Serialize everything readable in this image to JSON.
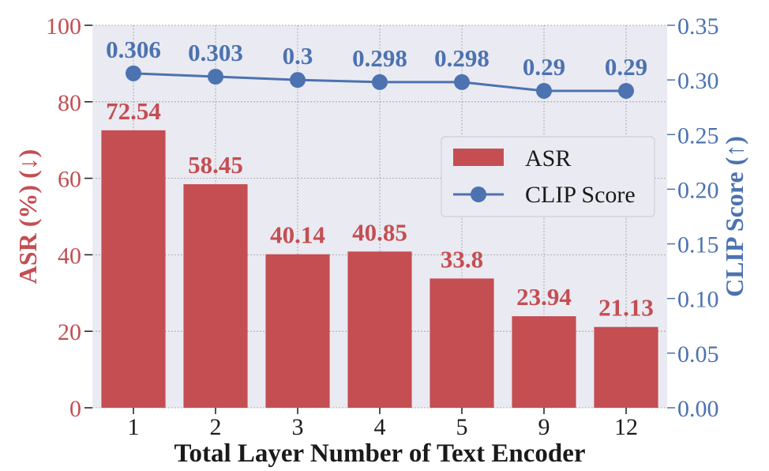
{
  "chart_data": {
    "type": "bar",
    "categories": [
      "1",
      "2",
      "3",
      "4",
      "5",
      "9",
      "12"
    ],
    "series": [
      {
        "name": "ASR",
        "type": "bar",
        "axis": "left",
        "values": [
          72.54,
          58.45,
          40.14,
          40.85,
          33.8,
          23.94,
          21.13
        ],
        "labels": [
          "72.54",
          "58.45",
          "40.14",
          "40.85",
          "33.8",
          "23.94",
          "21.13"
        ]
      },
      {
        "name": "CLIP Score",
        "type": "line",
        "axis": "right",
        "values": [
          0.306,
          0.303,
          0.3,
          0.298,
          0.298,
          0.29,
          0.29
        ],
        "labels": [
          "0.306",
          "0.303",
          "0.3",
          "0.298",
          "0.298",
          "0.29",
          "0.29"
        ]
      }
    ],
    "xlabel": "Total Layer Number of Text Encoder",
    "ylabel": "ASR (%) (↓)",
    "ylabel_right": "CLIP Score (↑)",
    "ylim": [
      0,
      100
    ],
    "ylim_right": [
      0,
      0.35
    ],
    "yticks": [
      "0",
      "20",
      "40",
      "60",
      "80",
      "100"
    ],
    "yticks_right": [
      "0.00",
      "0.05",
      "0.10",
      "0.15",
      "0.20",
      "0.25",
      "0.30",
      "0.35"
    ],
    "grid": true,
    "legend": "center-right",
    "colors": {
      "bar": "#c44e52",
      "line": "#4c72b0",
      "background": "#eaeaf2",
      "grid": "#9a9a9a"
    }
  }
}
